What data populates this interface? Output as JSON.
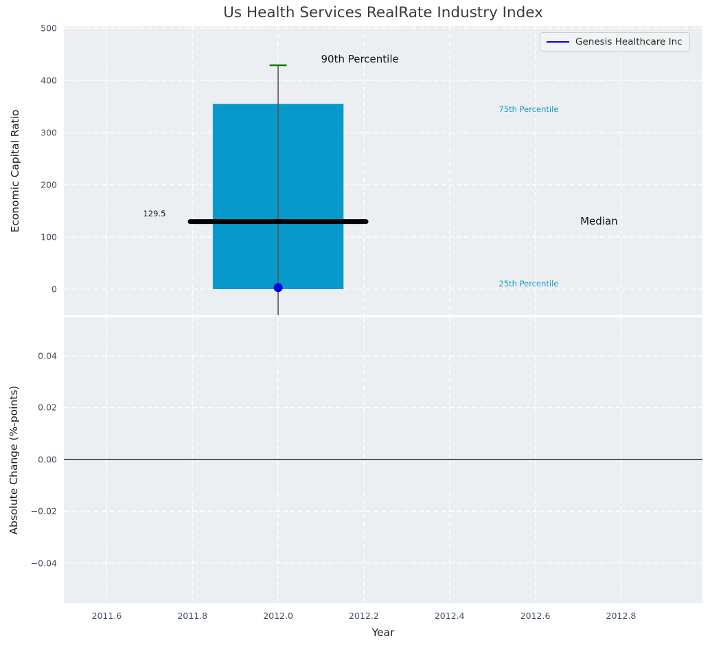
{
  "title": "Us Health Services RealRate Industry Index",
  "legend": {
    "label": "Genesis Healthcare Inc",
    "line_color": "#0000dd"
  },
  "colors": {
    "box_fill": "#0899cc",
    "median_line": "#000000",
    "whisker_line": "#555555",
    "whisker_cap": "#008000",
    "series_point": "#0000e6",
    "percentile_label": "#189acb",
    "annotation_label": "#111111",
    "axes_bg": "#eceff1",
    "grid": "#ffffff",
    "tick_label": "#3d4e63",
    "zero_line": "#000000"
  },
  "chart_data": [
    {
      "type": "boxplot",
      "ylabel": "Economic Capital Ratio",
      "xlim": [
        2011.5,
        2012.99
      ],
      "ylim": [
        -50,
        504
      ],
      "grid": true,
      "xticks": [
        2011.6,
        2011.8,
        2012.0,
        2012.2,
        2012.4,
        2012.6,
        2012.8
      ],
      "yticks": [
        0,
        100,
        200,
        300,
        400,
        500
      ],
      "ytick_labels": [
        "0",
        "100",
        "200",
        "300",
        "400",
        "500"
      ],
      "box": {
        "x": 2012.0,
        "q1": 0,
        "median": 129.5,
        "q3": 355,
        "whisker_high": 429,
        "whisker_low_clipped_at_axis_bottom": -50,
        "box_half_width": 0.1525,
        "median_half_width": 0.205,
        "cap_half_width": 0.02
      },
      "series": [
        {
          "name": "Genesis Healthcare Inc",
          "x": [
            2012.0
          ],
          "y": [
            3
          ]
        }
      ],
      "annotations": [
        {
          "text": "90th Percentile",
          "x": 2012.1,
          "y": 441,
          "size": 15,
          "colorKey": "annotation_label"
        },
        {
          "text": "75th Percentile",
          "x": 2012.515,
          "y": 345,
          "size": 11.5,
          "colorKey": "percentile_label"
        },
        {
          "text": "129.5",
          "x": 2011.685,
          "y": 145,
          "size": 11.5,
          "colorKey": "annotation_label"
        },
        {
          "text": "Median",
          "x": 2012.705,
          "y": 130,
          "size": 15,
          "colorKey": "annotation_label"
        },
        {
          "text": "25th Percentile",
          "x": 2012.515,
          "y": 10,
          "size": 11.5,
          "colorKey": "percentile_label"
        }
      ]
    },
    {
      "type": "line",
      "xlabel": "Year",
      "ylabel": "Absolute Change (%-points)",
      "xlim": [
        2011.5,
        2012.99
      ],
      "ylim": [
        -0.0554,
        0.0548
      ],
      "grid": true,
      "zero_line": true,
      "xticks": [
        2011.6,
        2011.8,
        2012.0,
        2012.2,
        2012.4,
        2012.6,
        2012.8
      ],
      "xtick_labels": [
        "2011.6",
        "2011.8",
        "2012.0",
        "2012.2",
        "2012.4",
        "2012.6",
        "2012.8"
      ],
      "yticks": [
        0.04,
        0.02,
        0.0,
        -0.02,
        -0.04
      ],
      "ytick_labels": [
        "0.04",
        "0.02",
        "0.00",
        "−0.02",
        "−0.04"
      ],
      "series": []
    }
  ]
}
